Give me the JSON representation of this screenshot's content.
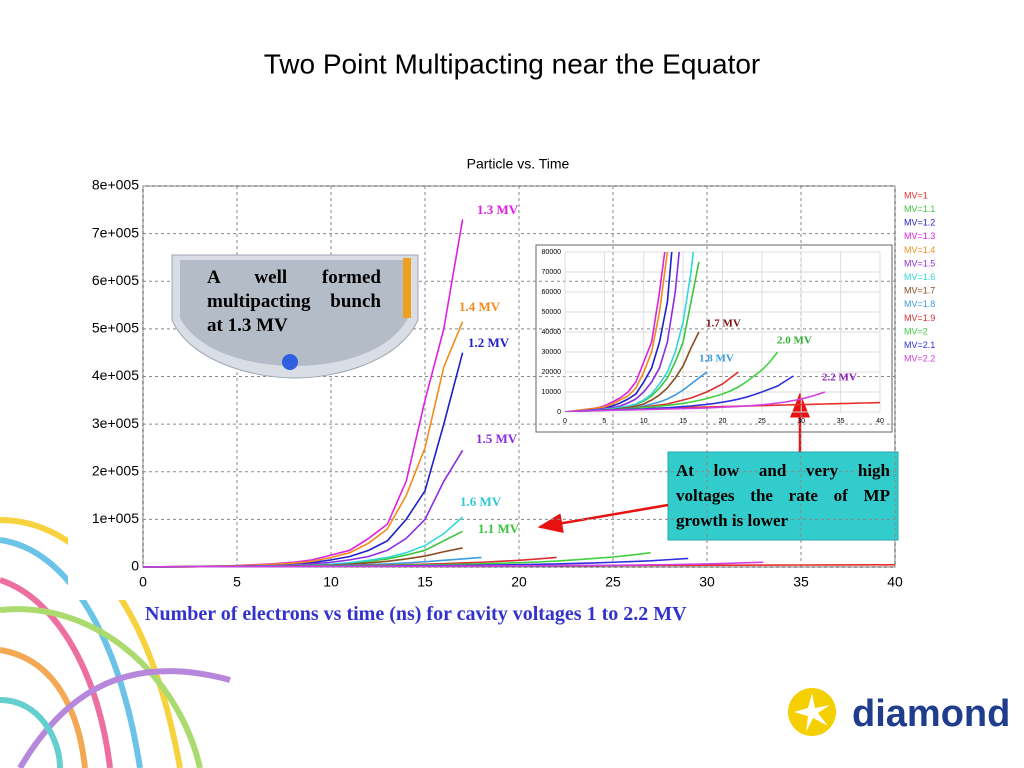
{
  "slide": {
    "title": "Two Point Multipacting near the Equator",
    "caption": "Number of electrons vs time (ns) for cavity voltages 1 to 2.2 MV",
    "callout": "At low and very high voltages the rate of MP growth is lower",
    "image_note": "A well formed multipacting bunch at 1.3 MV",
    "logo": "diamond"
  },
  "chart_data": [
    {
      "type": "line",
      "title": "Particle vs. Time",
      "x": [
        0,
        1,
        2,
        3,
        4,
        5,
        6,
        7,
        8,
        9,
        10,
        11,
        12,
        13,
        14,
        15,
        16,
        17,
        18,
        19,
        20,
        21,
        22,
        23,
        24,
        25,
        26,
        27,
        28,
        29,
        30,
        31,
        32,
        33,
        34,
        35,
        36,
        37,
        38,
        39,
        40
      ],
      "xlim": [
        0,
        40
      ],
      "xticks": [
        0,
        5,
        10,
        15,
        20,
        25,
        30,
        35,
        40
      ],
      "ylim": [
        0,
        800000
      ],
      "yticks": [
        0,
        {
          "value": 100000,
          "label": "1e+005"
        },
        {
          "value": 200000,
          "label": "2e+005"
        },
        {
          "value": 300000,
          "label": "3e+005"
        },
        {
          "value": 400000,
          "label": "4e+005"
        },
        {
          "value": 500000,
          "label": "5e+005"
        },
        {
          "value": 600000,
          "label": "6e+005"
        },
        {
          "value": 700000,
          "label": "7e+005"
        },
        {
          "value": 800000,
          "label": "8e+005"
        }
      ],
      "grid": true,
      "legend": "right",
      "series": [
        {
          "name": "MV=1",
          "color": "#e8302c",
          "values": [
            0,
            200,
            400,
            600,
            800,
            1000,
            1200,
            1400,
            1500,
            1600,
            1700,
            1800,
            1900,
            2000,
            2100,
            2200,
            2300,
            2400,
            2500,
            2600,
            2700,
            2800,
            2900,
            3000,
            3100,
            3200,
            3300,
            3400,
            3500,
            3600,
            3700,
            3800,
            3900,
            4000,
            4100,
            4200,
            4300,
            4400,
            4500,
            4600,
            4700
          ]
        },
        {
          "name": "MV=1.1",
          "color": "#3cc43c",
          "values": [
            0,
            300,
            500,
            700,
            900,
            1200,
            1500,
            2000,
            2800,
            3800,
            5500,
            8000,
            12000,
            17000,
            25000,
            35000,
            55000,
            75000,
            null,
            null,
            null,
            null,
            null,
            null,
            null,
            null,
            null,
            null,
            null,
            null,
            null,
            null,
            null,
            null,
            null,
            null,
            null,
            null,
            null,
            null,
            null
          ]
        },
        {
          "name": "MV=1.2",
          "color": "#2020c8",
          "values": [
            0,
            400,
            800,
            1200,
            1600,
            2000,
            3000,
            4500,
            6500,
            9000,
            15000,
            22000,
            35000,
            55000,
            100000,
            160000,
            300000,
            450000,
            null,
            null,
            null,
            null,
            null,
            null,
            null,
            null,
            null,
            null,
            null,
            null,
            null,
            null,
            null,
            null,
            null,
            null,
            null,
            null,
            null,
            null,
            null
          ]
        },
        {
          "name": "MV=1.3",
          "color": "#e020e0",
          "values": [
            0,
            500,
            1000,
            1500,
            2000,
            3000,
            5000,
            7000,
            10000,
            15000,
            25000,
            35000,
            60000,
            90000,
            180000,
            350000,
            500000,
            730000,
            null,
            null,
            null,
            null,
            null,
            null,
            null,
            null,
            null,
            null,
            null,
            null,
            null,
            null,
            null,
            null,
            null,
            null,
            null,
            null,
            null,
            null,
            null
          ]
        },
        {
          "name": "MV=1.4",
          "color": "#f08c1c",
          "values": [
            0,
            500,
            1000,
            1500,
            2000,
            2500,
            4000,
            6000,
            8000,
            12000,
            20000,
            30000,
            50000,
            80000,
            150000,
            250000,
            420000,
            515000,
            null,
            null,
            null,
            null,
            null,
            null,
            null,
            null,
            null,
            null,
            null,
            null,
            null,
            null,
            null,
            null,
            null,
            null,
            null,
            null,
            null,
            null,
            null
          ]
        },
        {
          "name": "MV=1.5",
          "color": "#8c2ce0",
          "values": [
            0,
            300,
            600,
            900,
            1200,
            1600,
            2200,
            3000,
            4500,
            6500,
            10000,
            15000,
            22000,
            35000,
            60000,
            100000,
            180000,
            245000,
            null,
            null,
            null,
            null,
            null,
            null,
            null,
            null,
            null,
            null,
            null,
            null,
            null,
            null,
            null,
            null,
            null,
            null,
            null,
            null,
            null,
            null,
            null
          ]
        },
        {
          "name": "MV=1.6",
          "color": "#30d8d8",
          "values": [
            0,
            300,
            500,
            800,
            1000,
            1300,
            1700,
            2300,
            3000,
            4000,
            6000,
            9000,
            14000,
            20000,
            30000,
            45000,
            70000,
            105000,
            null,
            null,
            null,
            null,
            null,
            null,
            null,
            null,
            null,
            null,
            null,
            null,
            null,
            null,
            null,
            null,
            null,
            null,
            null,
            null,
            null,
            null,
            null
          ]
        },
        {
          "name": "MV=1.7",
          "color": "#8c4c20",
          "values": [
            0,
            200,
            400,
            600,
            800,
            1000,
            1300,
            1700,
            2200,
            3000,
            4000,
            6000,
            8500,
            12000,
            17000,
            23000,
            32000,
            40000,
            null,
            null,
            null,
            null,
            null,
            null,
            null,
            null,
            null,
            null,
            null,
            null,
            null,
            null,
            null,
            null,
            null,
            null,
            null,
            null,
            null,
            null,
            null
          ]
        },
        {
          "name": "MV=1.8",
          "color": "#3c9ce0",
          "values": [
            0,
            200,
            400,
            500,
            700,
            900,
            1100,
            1400,
            1800,
            2300,
            3000,
            4000,
            5000,
            6500,
            8500,
            11000,
            14000,
            17000,
            20000,
            null,
            null,
            null,
            null,
            null,
            null,
            null,
            null,
            null,
            null,
            null,
            null,
            null,
            null,
            null,
            null,
            null,
            null,
            null,
            null,
            null,
            null
          ]
        },
        {
          "name": "MV=1.9",
          "color": "#d83030",
          "values": [
            0,
            200,
            400,
            600,
            800,
            1000,
            1200,
            1500,
            1800,
            2100,
            2500,
            3000,
            3500,
            4000,
            5000,
            6000,
            7000,
            8500,
            10000,
            12000,
            14000,
            17000,
            20000,
            null,
            null,
            null,
            null,
            null,
            null,
            null,
            null,
            null,
            null,
            null,
            null,
            null,
            null,
            null,
            null,
            null,
            null
          ]
        },
        {
          "name": "MV=2",
          "color": "#40d040",
          "values": [
            0,
            200,
            400,
            600,
            800,
            1000,
            1200,
            1400,
            1600,
            1900,
            2200,
            2500,
            2900,
            3300,
            3800,
            4300,
            5000,
            5800,
            6700,
            7800,
            9000,
            10500,
            12500,
            15000,
            18000,
            21000,
            25000,
            30000,
            null,
            null,
            null,
            null,
            null,
            null,
            null,
            null,
            null,
            null,
            null,
            null,
            null
          ]
        },
        {
          "name": "MV=2.1",
          "color": "#3030e0",
          "values": [
            0,
            300,
            500,
            700,
            900,
            1000,
            1100,
            1200,
            1300,
            1400,
            1500,
            1700,
            1900,
            2100,
            2400,
            2700,
            3000,
            3400,
            3800,
            4300,
            4900,
            5600,
            6400,
            7400,
            8600,
            10000,
            11500,
            13000,
            15500,
            18000,
            null,
            null,
            null,
            null,
            null,
            null,
            null,
            null,
            null,
            null,
            null
          ]
        },
        {
          "name": "MV=2.2",
          "color": "#d040e0",
          "values": [
            0,
            300,
            500,
            600,
            700,
            800,
            900,
            950,
            1000,
            1100,
            1200,
            1300,
            1400,
            1500,
            1600,
            1700,
            1800,
            1900,
            2000,
            2200,
            2400,
            2600,
            2800,
            3000,
            3300,
            3600,
            4000,
            4500,
            5000,
            5700,
            6500,
            7500,
            8700,
            10000,
            null,
            null,
            null,
            null,
            null,
            null,
            null
          ]
        }
      ],
      "annotations": [
        "1.3 MV",
        "1.4 MV",
        "1.2 MV",
        "1.5 MV",
        "1.6 MV",
        "1.1 MV"
      ]
    },
    {
      "type": "line",
      "xlim": [
        0,
        40
      ],
      "xticks": [
        0,
        5,
        10,
        15,
        20,
        25,
        30,
        35,
        40
      ],
      "ylim": [
        0,
        80000
      ],
      "yticks": [
        0,
        10000,
        20000,
        30000,
        40000,
        50000,
        60000,
        70000,
        80000
      ],
      "grid": true,
      "annotations": [
        "1.7 MV",
        "2.0 MV",
        "1.8 MV",
        "2.2 MV"
      ]
    }
  ]
}
